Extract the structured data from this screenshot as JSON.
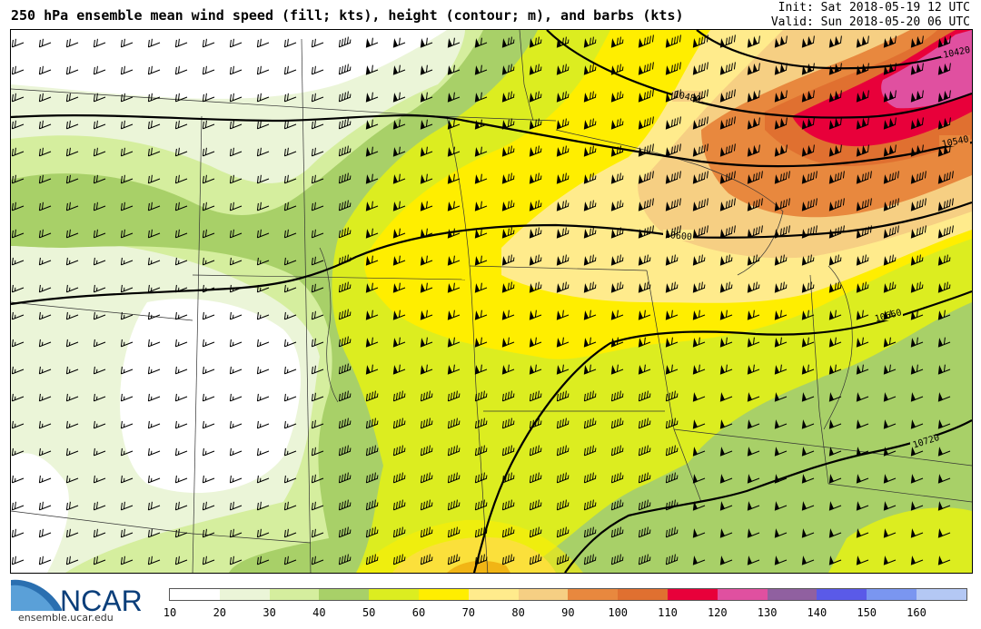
{
  "header": {
    "title": "250 hPa ensemble mean wind speed (fill; kts), height (contour; m), and barbs (kts)",
    "init": "Init: Sat 2018-05-19 12 UTC",
    "valid": "Valid: Sun 2018-05-20 06 UTC"
  },
  "contours": {
    "labels": [
      "10420",
      "10480",
      "10540",
      "10600",
      "10660",
      "10720"
    ]
  },
  "branding": {
    "logo_text": "NCAR",
    "url": "ensemble.ucar.edu"
  },
  "colorbar": {
    "ticks": [
      "10",
      "20",
      "30",
      "40",
      "50",
      "60",
      "70",
      "80",
      "90",
      "100",
      "110",
      "120",
      "130",
      "140",
      "150",
      "160"
    ],
    "colors": [
      "#ffffff",
      "#ebf5d8",
      "#d5ee9e",
      "#a8d068",
      "#dced20",
      "#ffee00",
      "#ffeb8c",
      "#f6cf83",
      "#e8883e",
      "#e07030",
      "#e8003a",
      "#e050a0",
      "#9060a0",
      "#5a5ae8",
      "#7a96f0",
      "#b4c8f4"
    ]
  }
}
